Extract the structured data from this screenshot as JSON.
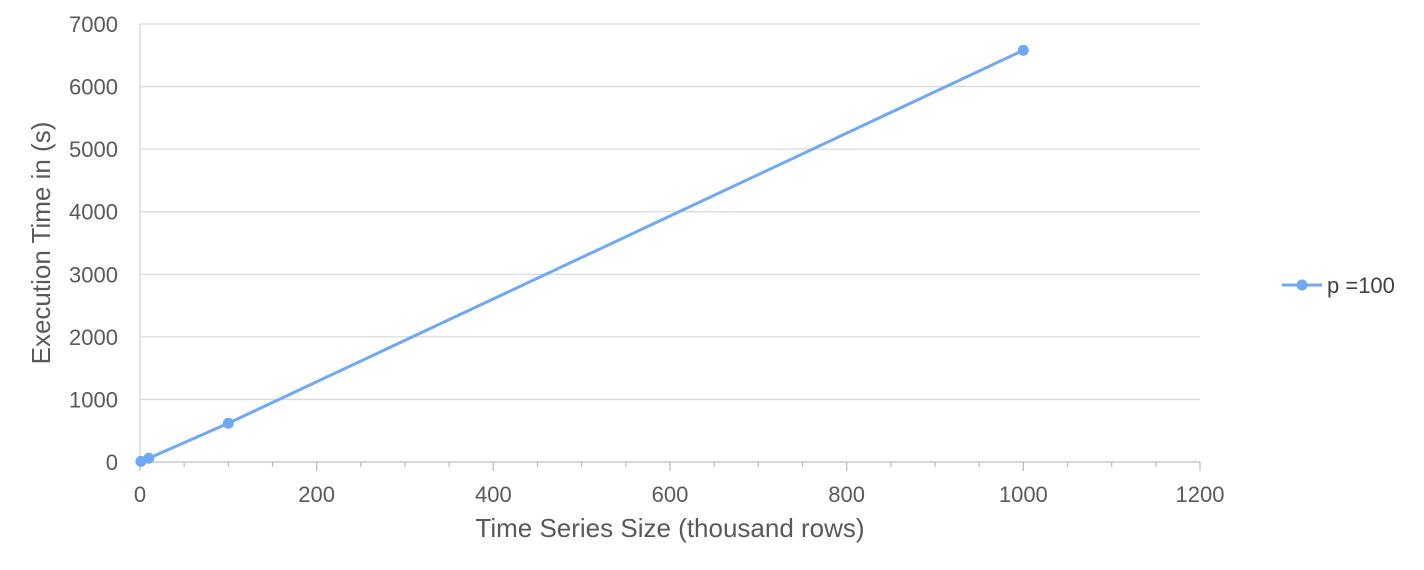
{
  "chart_data": {
    "type": "scatter",
    "xlabel": "Time Series Size (thousand rows)",
    "ylabel": "Execution Time in (s)",
    "xlim": [
      0,
      1200
    ],
    "ylim": [
      0,
      7000
    ],
    "x_ticks": [
      0,
      200,
      400,
      600,
      800,
      1000,
      1200
    ],
    "y_ticks": [
      0,
      1000,
      2000,
      3000,
      4000,
      5000,
      6000,
      7000
    ],
    "grid": "horizontal",
    "legend_position": "right",
    "series": [
      {
        "name": "p =100",
        "color": "#6fa8f5",
        "x": [
          1,
          10,
          100,
          1000
        ],
        "y": [
          10,
          60,
          620,
          6580
        ]
      }
    ]
  }
}
